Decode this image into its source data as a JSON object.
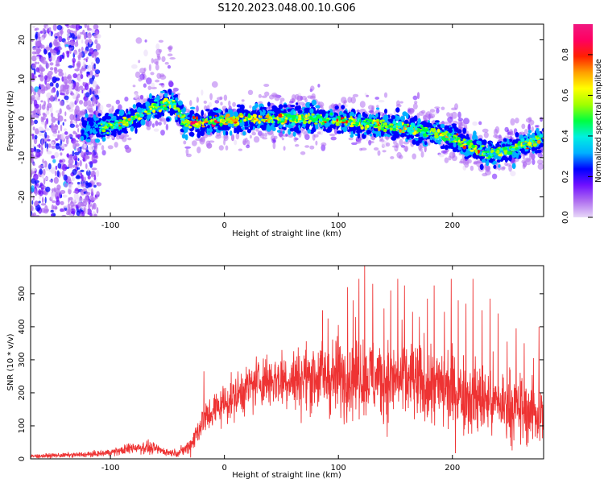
{
  "title": "S120.2023.048.00.10.G06",
  "colors": {
    "snr_line": "#ee3333",
    "frame": "#000000",
    "background": "#ffffff"
  },
  "chart_data": [
    {
      "type": "heatmap",
      "xlabel": "Height of straight line (km)",
      "ylabel": "Frequency (Hz)",
      "xlim": [
        -170,
        280
      ],
      "ylim": [
        -25,
        24
      ],
      "xticks": [
        -100,
        0,
        100,
        200
      ],
      "xtick_labels": [
        "-100",
        "0",
        "100",
        "200"
      ],
      "yticks": [
        -20,
        -10,
        0,
        10,
        20
      ],
      "ytick_labels": [
        "-20",
        "-10",
        "0",
        "10",
        "20"
      ],
      "grid": false,
      "colormap": "rainbow (purple → blue → cyan → green → yellow → red → magenta)",
      "signal_ridge": {
        "x": [
          -125,
          -100,
          -80,
          -60,
          -45,
          -35,
          -20,
          0,
          20,
          50,
          80,
          100,
          130,
          150,
          170,
          190,
          200,
          215,
          230,
          250,
          270,
          280
        ],
        "frequency_hz": [
          -3,
          -2,
          0,
          3,
          4,
          -1,
          -1,
          -0.5,
          0,
          0,
          0,
          -0.5,
          -1.5,
          -2,
          -3,
          -4,
          -5,
          -7,
          -9,
          -8,
          -6,
          -5
        ]
      },
      "noise_band_x": [
        -170,
        -120
      ],
      "colorbar": {
        "label": "Normalized spectral amplitude",
        "range": [
          0.0,
          0.95
        ],
        "ticks": [
          0.0,
          0.2,
          0.4,
          0.6,
          0.8
        ],
        "tick_labels": [
          "0.0",
          "0.2",
          "0.4",
          "0.6",
          "0.8"
        ],
        "colors": [
          "#e8d8f8",
          "#b070f0",
          "#7010ff",
          "#0000ff",
          "#00b0ff",
          "#00f0e0",
          "#00ff40",
          "#a0ff00",
          "#ffff00",
          "#ffa000",
          "#ff2000",
          "#ff0060",
          "#f01880"
        ]
      }
    },
    {
      "type": "line",
      "xlabel": "Height of straight line (km)",
      "ylabel": "SNR (10 * v/v)",
      "xlim": [
        -170,
        280
      ],
      "ylim": [
        0,
        585
      ],
      "xticks": [
        -100,
        0,
        100,
        200
      ],
      "xtick_labels": [
        "-100",
        "0",
        "100",
        "200"
      ],
      "yticks": [
        0,
        100,
        200,
        300,
        400,
        500
      ],
      "ytick_labels": [
        "0",
        "100",
        "200",
        "300",
        "400",
        "500"
      ],
      "grid": false,
      "series": [
        {
          "x": [
            -170,
            -150,
            -130,
            -110,
            -90,
            -80,
            -70,
            -60,
            -50,
            -40,
            -30,
            -20,
            -10,
            0,
            10,
            20,
            30,
            40,
            50,
            60,
            70,
            80,
            90,
            100,
            110,
            120,
            130,
            140,
            150,
            160,
            170,
            180,
            190,
            200,
            210,
            220,
            230,
            240,
            250,
            260,
            270,
            280
          ],
          "y": [
            8,
            10,
            12,
            15,
            25,
            35,
            35,
            30,
            20,
            18,
            40,
            110,
            145,
            170,
            190,
            215,
            235,
            240,
            245,
            240,
            245,
            250,
            245,
            245,
            250,
            255,
            245,
            240,
            240,
            235,
            225,
            220,
            215,
            210,
            195,
            185,
            175,
            165,
            160,
            150,
            140,
            130
          ],
          "noise_amplitude": [
            5,
            6,
            7,
            8,
            12,
            18,
            18,
            15,
            10,
            10,
            25,
            45,
            50,
            55,
            60,
            65,
            70,
            75,
            80,
            85,
            90,
            95,
            100,
            105,
            110,
            110,
            110,
            110,
            110,
            110,
            110,
            110,
            110,
            110,
            105,
            100,
            100,
            100,
            95,
            95,
            90,
            90
          ],
          "spikes": [
            {
              "x": -18,
              "y": 265
            },
            {
              "x": 86,
              "y": 450
            },
            {
              "x": 91,
              "y": 425
            },
            {
              "x": 100,
              "y": 405
            },
            {
              "x": 108,
              "y": 520
            },
            {
              "x": 113,
              "y": 480
            },
            {
              "x": 118,
              "y": 545
            },
            {
              "x": 123,
              "y": 585
            },
            {
              "x": 130,
              "y": 530
            },
            {
              "x": 140,
              "y": 455
            },
            {
              "x": 146,
              "y": 510
            },
            {
              "x": 152,
              "y": 545
            },
            {
              "x": 158,
              "y": 525
            },
            {
              "x": 165,
              "y": 445
            },
            {
              "x": 171,
              "y": 430
            },
            {
              "x": 178,
              "y": 485
            },
            {
              "x": 184,
              "y": 525
            },
            {
              "x": 193,
              "y": 445
            },
            {
              "x": 199,
              "y": 545
            },
            {
              "x": 205,
              "y": 480
            },
            {
              "x": 212,
              "y": 470
            },
            {
              "x": 218,
              "y": 545
            },
            {
              "x": 226,
              "y": 450
            },
            {
              "x": 233,
              "y": 485
            },
            {
              "x": 240,
              "y": 440
            },
            {
              "x": 248,
              "y": 355
            },
            {
              "x": 256,
              "y": 395
            },
            {
              "x": 263,
              "y": 350
            },
            {
              "x": 271,
              "y": 305
            },
            {
              "x": 276,
              "y": 400
            }
          ]
        }
      ]
    }
  ]
}
